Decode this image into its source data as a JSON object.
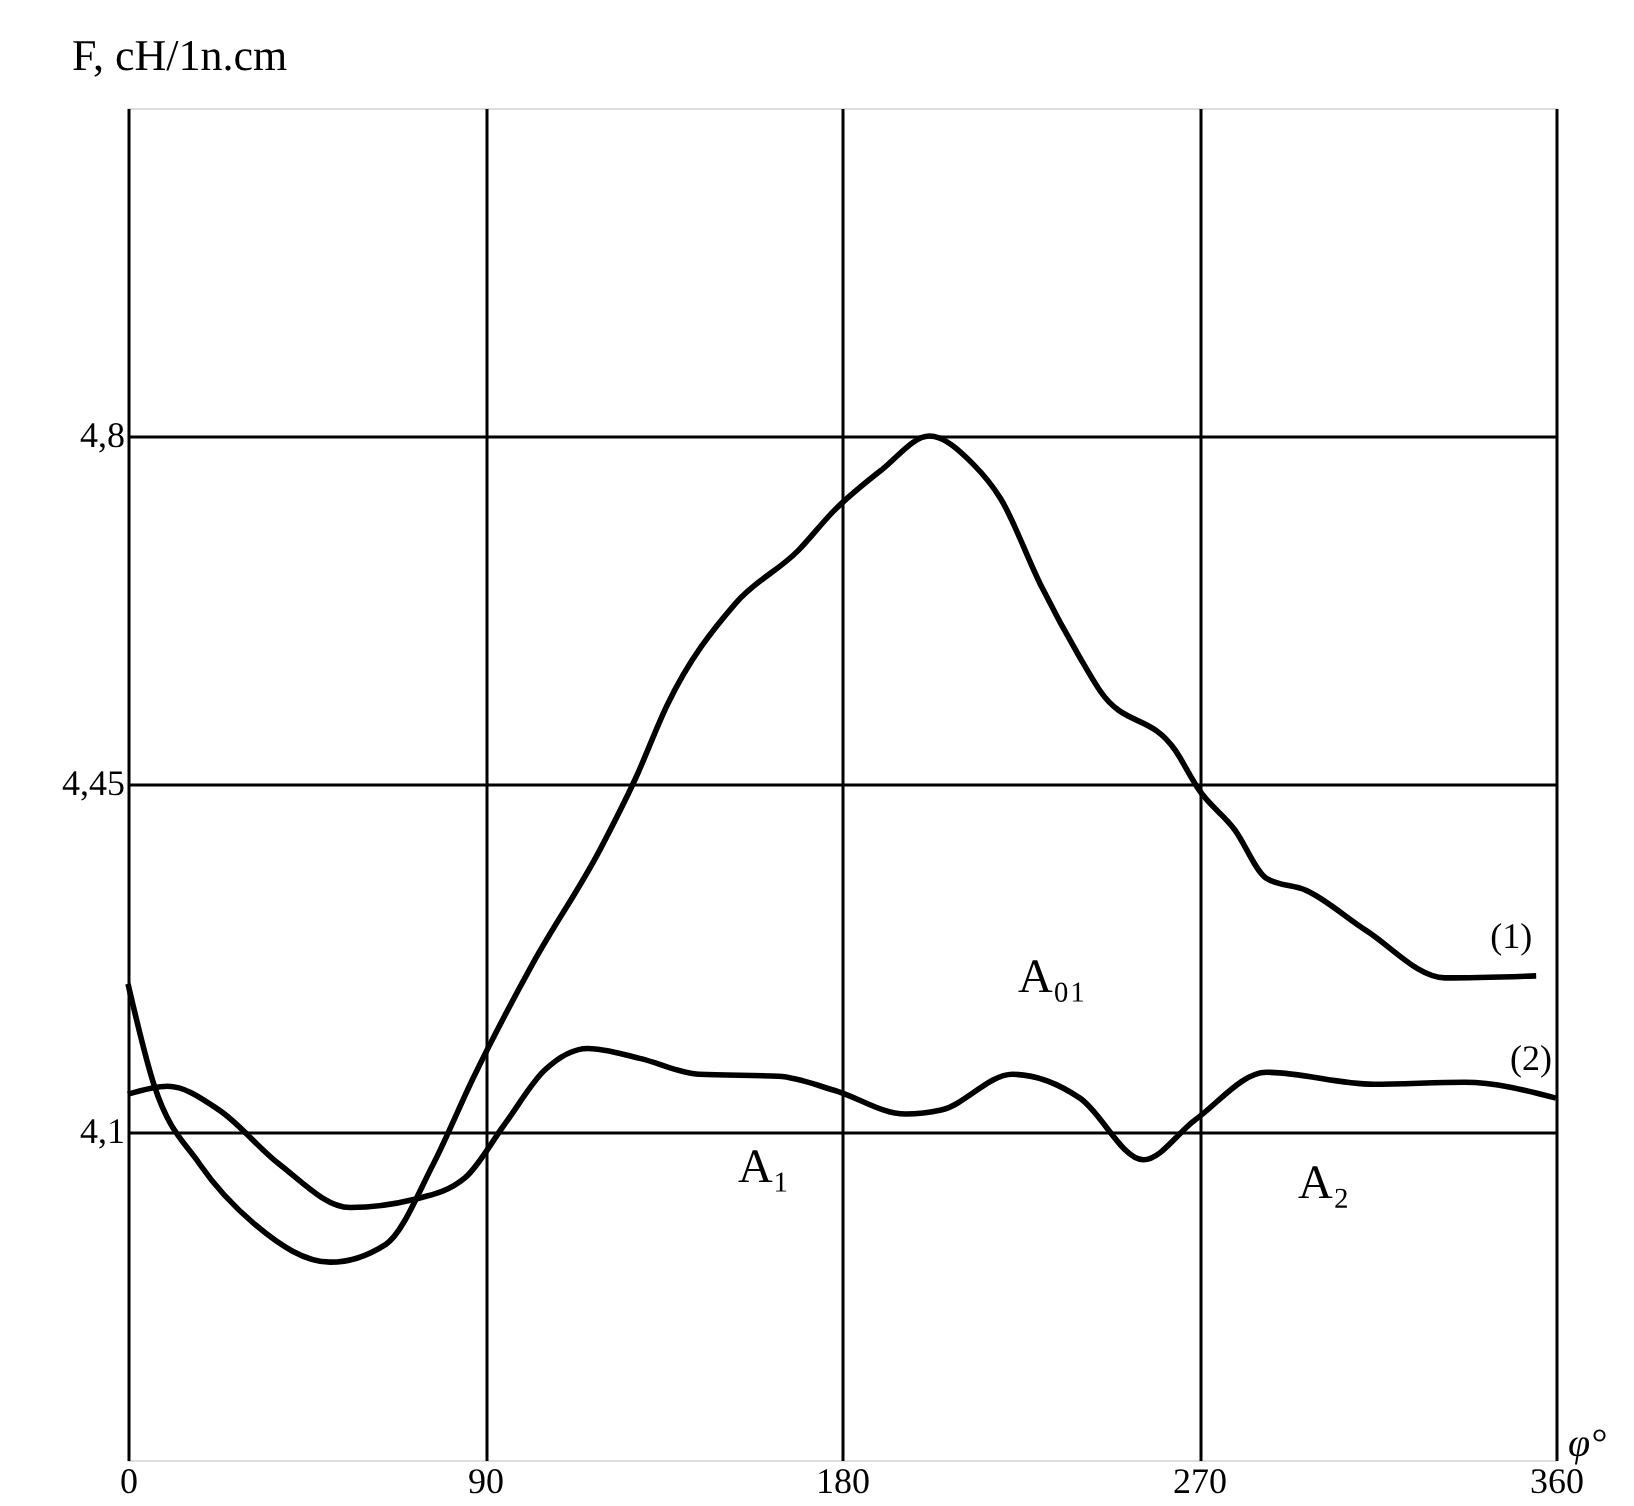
{
  "chart_data": {
    "type": "line",
    "xlabel": "φ°",
    "ylabel": "F, cH/1n.cm",
    "xlim": [
      0,
      360
    ],
    "xticks": [
      0,
      90,
      180,
      270,
      360
    ],
    "ylim": [
      3.77,
      5.13
    ],
    "yticks": [
      {
        "value": 4.1,
        "label": "4,1"
      },
      {
        "value": 4.45,
        "label": "4,45"
      },
      {
        "value": 4.8,
        "label": "4,8"
      }
    ],
    "grid": true,
    "marker": "none",
    "line_style": "solid",
    "series": [
      {
        "name": "(1)",
        "color": "#000000",
        "x": [
          0,
          6.5,
          18,
          32,
          51,
          65,
          77,
          87,
          102,
          119,
          128,
          136,
          153,
          169,
          178,
          190,
          202,
          213,
          220,
          230,
          240,
          245,
          264,
          270,
          279,
          287,
          297,
          312,
          332,
          355
        ],
        "values": [
          4.249,
          4.148,
          4.068,
          4.007,
          3.969,
          3.987,
          4.068,
          4.154,
          4.269,
          4.384,
          4.456,
          4.53,
          4.631,
          4.685,
          4.725,
          4.766,
          4.8,
          4.772,
          4.737,
          4.651,
          4.577,
          4.544,
          4.484,
          4.444,
          4.404,
          4.355,
          4.343,
          4.303,
          4.255,
          4.257
        ]
      },
      {
        "name": "(2)",
        "color": "#000000",
        "x": [
          0,
          10,
          23,
          38,
          56,
          72,
          85,
          95,
          105,
          116,
          129,
          144,
          164,
          178,
          196,
          205,
          223,
          240,
          256,
          269,
          287,
          314,
          337,
          360
        ],
        "values": [
          4.138,
          4.146,
          4.122,
          4.068,
          4.024,
          4.032,
          4.054,
          4.108,
          4.162,
          4.184,
          4.174,
          4.158,
          4.156,
          4.142,
          4.118,
          4.122,
          4.158,
          4.134,
          4.072,
          4.112,
          4.16,
          4.148,
          4.15,
          4.134
        ]
      }
    ],
    "annotations": [
      "A₁",
      "A₂",
      "A₀₁"
    ]
  }
}
